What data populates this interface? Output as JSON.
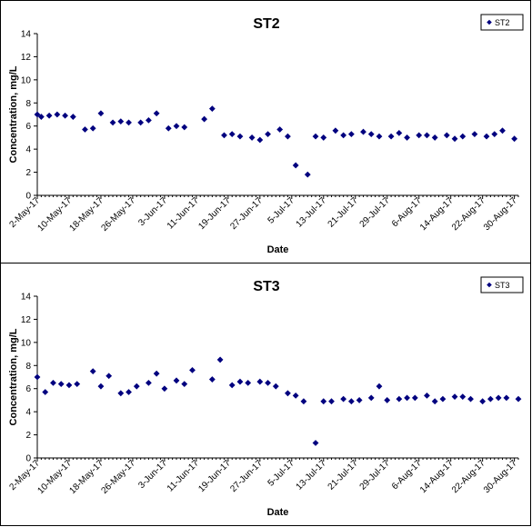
{
  "chart_data": [
    {
      "type": "scatter",
      "title": "ST2",
      "xlabel": "Date",
      "ylabel": "Concentration, mg/L",
      "ylim": [
        0,
        14
      ],
      "yticks": [
        "0",
        "2",
        "4",
        "6",
        "8",
        "10",
        "12",
        "14"
      ],
      "xlim": [
        "2017-05-02",
        "2017-08-31"
      ],
      "xticks": [
        "2-May-17",
        "10-May-17",
        "18-May-17",
        "26-May-17",
        "3-Jun-17",
        "11-Jun-17",
        "19-Jun-17",
        "27-Jun-17",
        "5-Jul-17",
        "13-Jul-17",
        "21-Jul-17",
        "29-Jul-17",
        "6-Aug-17",
        "14-Aug-17",
        "22-Aug-17",
        "30-Aug-17"
      ],
      "grid": false,
      "legend_position": "top-right",
      "color": "#00007f",
      "series": [
        {
          "name": "ST2",
          "points": [
            [
              "2017-05-02",
              7.0
            ],
            [
              "2017-05-03",
              6.8
            ],
            [
              "2017-05-05",
              6.9
            ],
            [
              "2017-05-07",
              7.0
            ],
            [
              "2017-05-09",
              6.9
            ],
            [
              "2017-05-11",
              6.8
            ],
            [
              "2017-05-14",
              5.7
            ],
            [
              "2017-05-16",
              5.8
            ],
            [
              "2017-05-18",
              7.1
            ],
            [
              "2017-05-21",
              6.3
            ],
            [
              "2017-05-23",
              6.4
            ],
            [
              "2017-05-25",
              6.3
            ],
            [
              "2017-05-28",
              6.3
            ],
            [
              "2017-05-30",
              6.5
            ],
            [
              "2017-06-01",
              7.1
            ],
            [
              "2017-06-04",
              5.8
            ],
            [
              "2017-06-06",
              6.0
            ],
            [
              "2017-06-08",
              5.9
            ],
            [
              "2017-06-13",
              6.6
            ],
            [
              "2017-06-15",
              7.5
            ],
            [
              "2017-06-18",
              5.2
            ],
            [
              "2017-06-20",
              5.3
            ],
            [
              "2017-06-22",
              5.1
            ],
            [
              "2017-06-25",
              5.0
            ],
            [
              "2017-06-27",
              4.8
            ],
            [
              "2017-06-29",
              5.3
            ],
            [
              "2017-07-02",
              5.7
            ],
            [
              "2017-07-04",
              5.1
            ],
            [
              "2017-07-06",
              2.6
            ],
            [
              "2017-07-09",
              1.8
            ],
            [
              "2017-07-11",
              5.1
            ],
            [
              "2017-07-13",
              5.0
            ],
            [
              "2017-07-16",
              5.6
            ],
            [
              "2017-07-18",
              5.2
            ],
            [
              "2017-07-20",
              5.3
            ],
            [
              "2017-07-23",
              5.5
            ],
            [
              "2017-07-25",
              5.3
            ],
            [
              "2017-07-27",
              5.1
            ],
            [
              "2017-07-30",
              5.1
            ],
            [
              "2017-08-01",
              5.4
            ],
            [
              "2017-08-03",
              5.0
            ],
            [
              "2017-08-06",
              5.2
            ],
            [
              "2017-08-08",
              5.2
            ],
            [
              "2017-08-10",
              5.0
            ],
            [
              "2017-08-13",
              5.2
            ],
            [
              "2017-08-15",
              4.9
            ],
            [
              "2017-08-17",
              5.1
            ],
            [
              "2017-08-20",
              5.3
            ],
            [
              "2017-08-23",
              5.1
            ],
            [
              "2017-08-25",
              5.3
            ],
            [
              "2017-08-27",
              5.6
            ],
            [
              "2017-08-30",
              4.9
            ]
          ]
        }
      ]
    },
    {
      "type": "scatter",
      "title": "ST3",
      "xlabel": "Date",
      "ylabel": "Concentration, mg/L",
      "ylim": [
        0,
        14
      ],
      "yticks": [
        "0",
        "2",
        "4",
        "6",
        "8",
        "10",
        "12",
        "14"
      ],
      "xlim": [
        "2017-05-02",
        "2017-08-31"
      ],
      "xticks": [
        "2-May-17",
        "10-May-17",
        "18-May-17",
        "26-May-17",
        "3-Jun-17",
        "11-Jun-17",
        "19-Jun-17",
        "27-Jun-17",
        "5-Jul-17",
        "13-Jul-17",
        "21-Jul-17",
        "29-Jul-17",
        "6-Aug-17",
        "14-Aug-17",
        "22-Aug-17",
        "30-Aug-17"
      ],
      "grid": false,
      "legend_position": "top-right",
      "color": "#00007f",
      "series": [
        {
          "name": "ST3",
          "points": [
            [
              "2017-05-02",
              7.0
            ],
            [
              "2017-05-04",
              5.7
            ],
            [
              "2017-05-06",
              6.5
            ],
            [
              "2017-05-08",
              6.4
            ],
            [
              "2017-05-10",
              6.3
            ],
            [
              "2017-05-12",
              6.4
            ],
            [
              "2017-05-16",
              7.5
            ],
            [
              "2017-05-18",
              6.2
            ],
            [
              "2017-05-20",
              7.1
            ],
            [
              "2017-05-23",
              5.6
            ],
            [
              "2017-05-25",
              5.7
            ],
            [
              "2017-05-27",
              6.2
            ],
            [
              "2017-05-30",
              6.5
            ],
            [
              "2017-06-01",
              7.3
            ],
            [
              "2017-06-03",
              6.0
            ],
            [
              "2017-06-06",
              6.7
            ],
            [
              "2017-06-08",
              6.4
            ],
            [
              "2017-06-10",
              7.6
            ],
            [
              "2017-06-15",
              6.8
            ],
            [
              "2017-06-17",
              8.5
            ],
            [
              "2017-06-20",
              6.3
            ],
            [
              "2017-06-22",
              6.6
            ],
            [
              "2017-06-24",
              6.5
            ],
            [
              "2017-06-27",
              6.6
            ],
            [
              "2017-06-29",
              6.5
            ],
            [
              "2017-07-01",
              6.2
            ],
            [
              "2017-07-04",
              5.6
            ],
            [
              "2017-07-06",
              5.4
            ],
            [
              "2017-07-08",
              4.9
            ],
            [
              "2017-07-11",
              1.3
            ],
            [
              "2017-07-13",
              4.9
            ],
            [
              "2017-07-15",
              4.9
            ],
            [
              "2017-07-18",
              5.1
            ],
            [
              "2017-07-20",
              4.9
            ],
            [
              "2017-07-22",
              5.0
            ],
            [
              "2017-07-25",
              5.2
            ],
            [
              "2017-07-27",
              6.2
            ],
            [
              "2017-07-29",
              5.0
            ],
            [
              "2017-08-01",
              5.1
            ],
            [
              "2017-08-03",
              5.2
            ],
            [
              "2017-08-05",
              5.2
            ],
            [
              "2017-08-08",
              5.4
            ],
            [
              "2017-08-10",
              4.9
            ],
            [
              "2017-08-12",
              5.1
            ],
            [
              "2017-08-15",
              5.3
            ],
            [
              "2017-08-17",
              5.3
            ],
            [
              "2017-08-19",
              5.1
            ],
            [
              "2017-08-22",
              4.9
            ],
            [
              "2017-08-24",
              5.1
            ],
            [
              "2017-08-26",
              5.2
            ],
            [
              "2017-08-28",
              5.2
            ],
            [
              "2017-08-31",
              5.1
            ]
          ]
        }
      ]
    }
  ]
}
